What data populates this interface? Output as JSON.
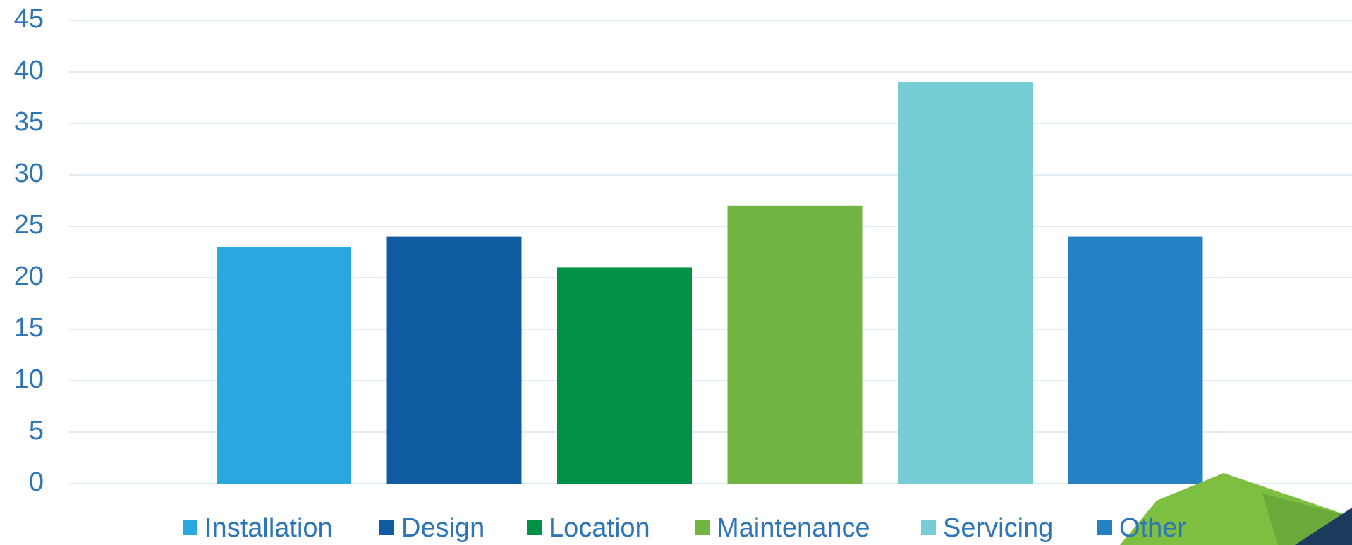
{
  "chart_data": {
    "type": "bar",
    "series": [
      {
        "name": "Installation",
        "color": "#29a8e0",
        "values": [
          23
        ]
      },
      {
        "name": "Design",
        "color": "#0f5ca3",
        "values": [
          24
        ]
      },
      {
        "name": "Location",
        "color": "#009046",
        "values": [
          21
        ]
      },
      {
        "name": "Maintenance",
        "color": "#73b543",
        "values": [
          27
        ]
      },
      {
        "name": "Servicing",
        "color": "#77cdd6",
        "values": [
          39
        ]
      },
      {
        "name": "Other",
        "color": "#2581c4",
        "values": [
          24
        ]
      }
    ],
    "ylim": [
      0,
      45
    ],
    "yticks": [
      0,
      5,
      10,
      15,
      20,
      25,
      30,
      35,
      40,
      45
    ],
    "grid": true,
    "legend": "bottom"
  }
}
